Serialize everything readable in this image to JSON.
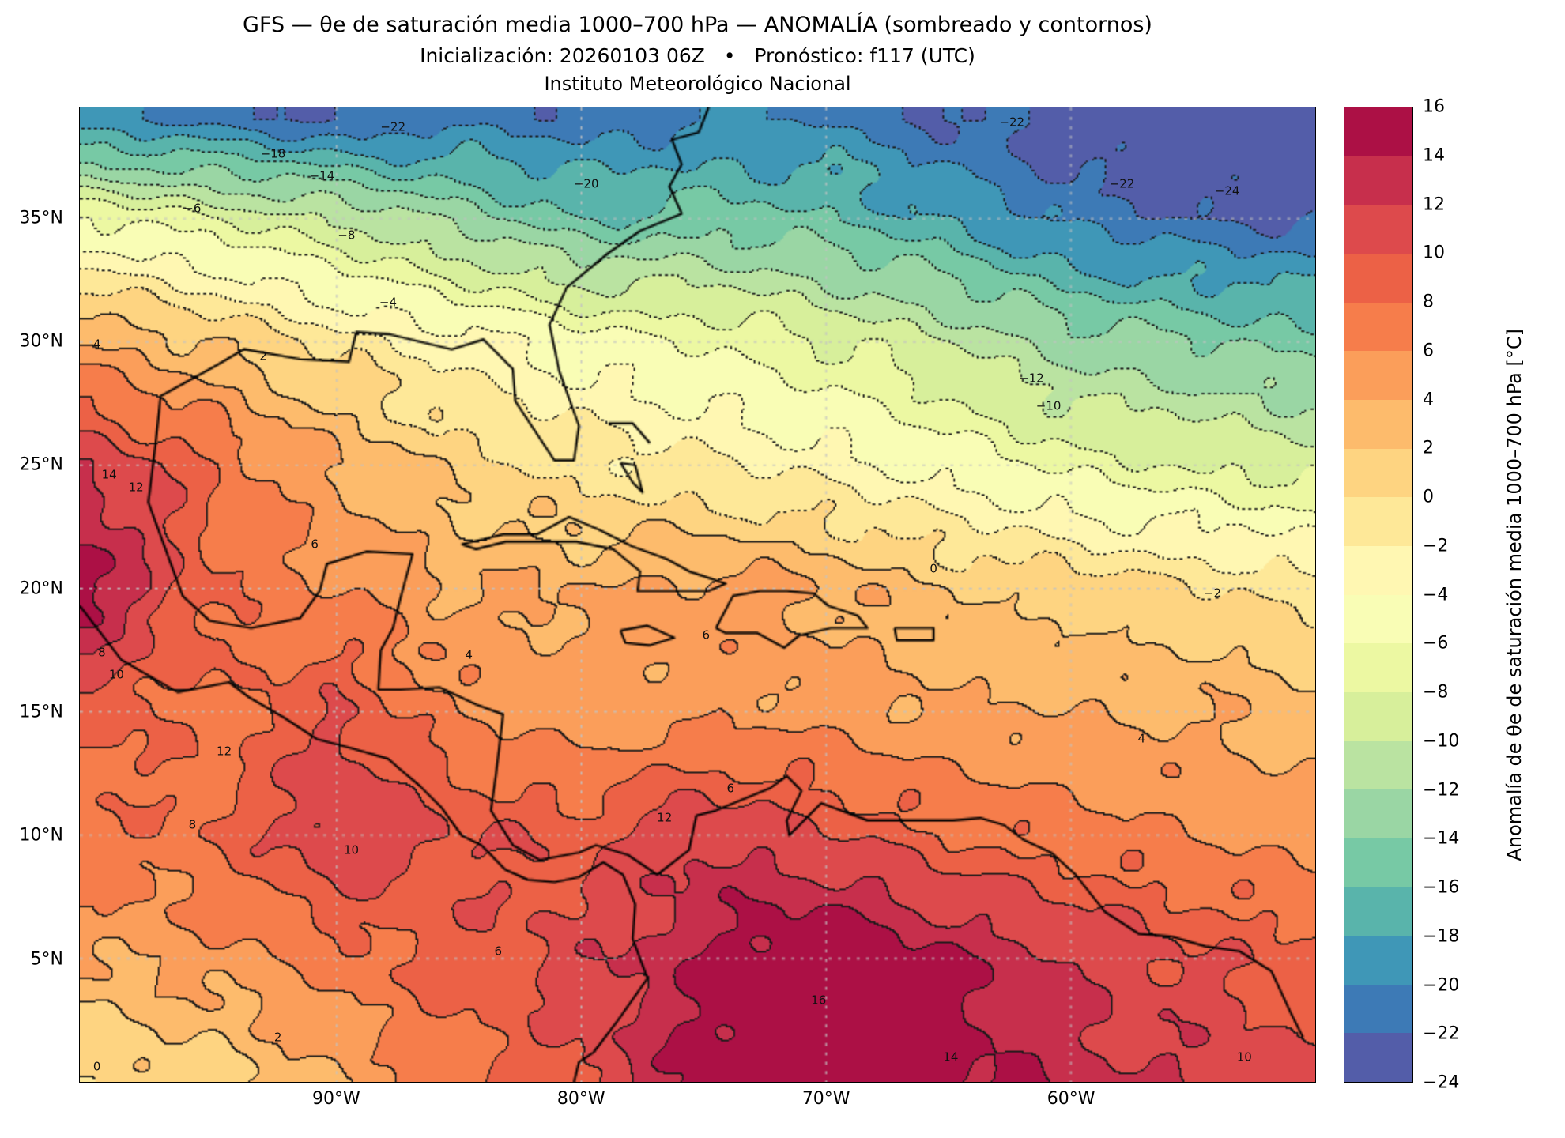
{
  "titles": {
    "line1": "GFS — θe de saturación media 1000–700 hPa — ANOMALÍA (sombreado y contornos)",
    "line2": "Inicialización: 20260103 06Z   •   Pronóstico: f117 (UTC)",
    "line3": "Instituto Meteorológico Nacional"
  },
  "axes": {
    "lat_ticks": [
      {
        "value": 35,
        "label": "35°N"
      },
      {
        "value": 30,
        "label": "30°N"
      },
      {
        "value": 25,
        "label": "25°N"
      },
      {
        "value": 20,
        "label": "20°N"
      },
      {
        "value": 15,
        "label": "15°N"
      },
      {
        "value": 10,
        "label": "10°N"
      },
      {
        "value": 5,
        "label": "5°N"
      }
    ],
    "lon_ticks": [
      {
        "value": -90,
        "label": "90°W"
      },
      {
        "value": -80,
        "label": "80°W"
      },
      {
        "value": -70,
        "label": "70°W"
      },
      {
        "value": -60,
        "label": "60°W"
      }
    ]
  },
  "colorbar": {
    "label": "Anomalía de θe de saturación media 1000–700 hPa [°C]",
    "tick_values": [
      16,
      14,
      12,
      10,
      8,
      6,
      4,
      2,
      0,
      -2,
      -4,
      -6,
      -8,
      -10,
      -12,
      -14,
      -16,
      -18,
      -20,
      -22,
      -24
    ],
    "levels_min": -24,
    "levels_max": 16,
    "level_step": 2,
    "spectral_anchors": [
      "#5e4fa2",
      "#3288bd",
      "#66c2a5",
      "#abdda4",
      "#e6f598",
      "#ffffbf",
      "#fee08b",
      "#fdae61",
      "#f46d43",
      "#d53e4f",
      "#9e0142"
    ]
  },
  "chart_data": {
    "type": "heatmap",
    "title": "GFS — θe de saturación media 1000–700 hPa — ANOMALÍA (sombreado y contornos)",
    "units": "°C",
    "levels": {
      "min": -24,
      "max": 16,
      "step": 2
    },
    "extent": {
      "lon_min": -100.5,
      "lon_max": -50,
      "lat_min": 0,
      "lat_max": 39.5
    },
    "grid": {
      "lons": [
        -100,
        -95,
        -90,
        -85,
        -80,
        -75,
        -70,
        -65,
        -60,
        -55,
        -50
      ],
      "lats": [
        39,
        35,
        30,
        25,
        20,
        15,
        10,
        5,
        0
      ],
      "anomaly": [
        [
          -20,
          -21,
          -22,
          -21,
          -21,
          -20,
          -20,
          -22,
          -23,
          -25,
          -25
        ],
        [
          -6,
          -8,
          -10,
          -13,
          -16,
          -15,
          -16,
          -18,
          -21,
          -22,
          -22
        ],
        [
          4,
          2,
          -1,
          -3,
          -5,
          -6,
          -8,
          -10,
          -13,
          -14,
          -15
        ],
        [
          12,
          8,
          4,
          1,
          -1,
          -2,
          -3,
          -5,
          -7,
          -8,
          -9
        ],
        [
          15,
          8,
          6,
          4,
          4,
          5,
          4,
          2,
          1,
          0,
          -1
        ],
        [
          9,
          7,
          10,
          6,
          5,
          5,
          5,
          4,
          4,
          4,
          3
        ],
        [
          7,
          8,
          12,
          10,
          9,
          12,
          10,
          8,
          7,
          6,
          5
        ],
        [
          4,
          5,
          7,
          9,
          11,
          14,
          17,
          14,
          12,
          10,
          9
        ],
        [
          0,
          1,
          4,
          7,
          10,
          15,
          17,
          15,
          13,
          12,
          10
        ]
      ]
    },
    "contour_labels": [
      {
        "lon": -92.6,
        "lat": 37.6,
        "text": "-18"
      },
      {
        "lon": -87.7,
        "lat": 38.7,
        "text": "-22"
      },
      {
        "lon": -90.6,
        "lat": 36.7,
        "text": "-14"
      },
      {
        "lon": -95.9,
        "lat": 35.4,
        "text": "-6"
      },
      {
        "lon": -89.6,
        "lat": 34.3,
        "text": "-8"
      },
      {
        "lon": -79.8,
        "lat": 36.4,
        "text": "-20"
      },
      {
        "lon": -62.4,
        "lat": 38.9,
        "text": "-22"
      },
      {
        "lon": -57.9,
        "lat": 36.4,
        "text": "-22"
      },
      {
        "lon": -53.6,
        "lat": 36.1,
        "text": "-24"
      },
      {
        "lon": -87.9,
        "lat": 31.6,
        "text": "-4"
      },
      {
        "lon": -61.6,
        "lat": 28.5,
        "text": "-12"
      },
      {
        "lon": -60.9,
        "lat": 27.4,
        "text": "-10"
      },
      {
        "lon": -99.8,
        "lat": 29.9,
        "text": "4"
      },
      {
        "lon": -93.0,
        "lat": 29.4,
        "text": "2"
      },
      {
        "lon": -90.9,
        "lat": 21.8,
        "text": "6"
      },
      {
        "lon": -99.3,
        "lat": 24.6,
        "text": "14"
      },
      {
        "lon": -98.2,
        "lat": 24.1,
        "text": "12"
      },
      {
        "lon": -65.6,
        "lat": 20.8,
        "text": "0"
      },
      {
        "lon": -54.2,
        "lat": 19.8,
        "text": "-2"
      },
      {
        "lon": -74.9,
        "lat": 18.1,
        "text": "6"
      },
      {
        "lon": -84.6,
        "lat": 17.3,
        "text": "4"
      },
      {
        "lon": -99.6,
        "lat": 17.4,
        "text": "8"
      },
      {
        "lon": -99.0,
        "lat": 16.5,
        "text": "10"
      },
      {
        "lon": -94.6,
        "lat": 13.4,
        "text": "12"
      },
      {
        "lon": -95.9,
        "lat": 10.4,
        "text": "8"
      },
      {
        "lon": -89.4,
        "lat": 9.4,
        "text": "10"
      },
      {
        "lon": -76.6,
        "lat": 10.7,
        "text": "12"
      },
      {
        "lon": -73.9,
        "lat": 11.9,
        "text": "6"
      },
      {
        "lon": -70.3,
        "lat": 3.3,
        "text": "16"
      },
      {
        "lon": -64.9,
        "lat": 1.0,
        "text": "14"
      },
      {
        "lon": -57.1,
        "lat": 13.9,
        "text": "4"
      },
      {
        "lon": -92.4,
        "lat": 1.8,
        "text": "2"
      },
      {
        "lon": -99.8,
        "lat": 0.6,
        "text": "0"
      },
      {
        "lon": -83.4,
        "lat": 5.3,
        "text": "6"
      },
      {
        "lon": -52.9,
        "lat": 1.0,
        "text": "10"
      }
    ],
    "coastlines": [
      [
        [
          -97.4,
          25.9
        ],
        [
          -97.2,
          27.8
        ],
        [
          -95.0,
          29.0
        ],
        [
          -93.8,
          29.7
        ],
        [
          -91.5,
          29.3
        ],
        [
          -89.5,
          29.2
        ],
        [
          -89.2,
          30.4
        ],
        [
          -87.8,
          30.3
        ],
        [
          -85.3,
          29.7
        ],
        [
          -84.0,
          30.1
        ],
        [
          -82.8,
          28.9
        ],
        [
          -82.7,
          27.6
        ],
        [
          -81.9,
          26.4
        ],
        [
          -81.1,
          25.2
        ],
        [
          -80.3,
          25.2
        ],
        [
          -80.1,
          26.6
        ],
        [
          -80.9,
          28.8
        ],
        [
          -81.3,
          30.7
        ],
        [
          -80.6,
          32.2
        ],
        [
          -78.9,
          33.6
        ],
        [
          -77.6,
          34.5
        ],
        [
          -75.9,
          35.2
        ],
        [
          -76.4,
          36.3
        ],
        [
          -75.9,
          37.2
        ],
        [
          -76.3,
          38.2
        ],
        [
          -75.2,
          38.5
        ],
        [
          -74.8,
          39.5
        ]
      ],
      [
        [
          -97.4,
          25.9
        ],
        [
          -97.7,
          23.5
        ],
        [
          -96.3,
          19.7
        ],
        [
          -95.2,
          18.7
        ],
        [
          -93.5,
          18.4
        ],
        [
          -91.5,
          18.8
        ],
        [
          -90.7,
          19.9
        ],
        [
          -90.4,
          21.0
        ],
        [
          -88.8,
          21.5
        ],
        [
          -86.9,
          21.4
        ],
        [
          -87.4,
          19.6
        ],
        [
          -87.7,
          18.4
        ],
        [
          -88.2,
          17.5
        ],
        [
          -88.3,
          15.9
        ],
        [
          -87.4,
          15.9
        ],
        [
          -85.8,
          16.0
        ],
        [
          -84.3,
          15.3
        ],
        [
          -83.2,
          14.9
        ],
        [
          -83.5,
          12.4
        ],
        [
          -83.7,
          11.0
        ],
        [
          -82.8,
          9.6
        ],
        [
          -81.7,
          9.0
        ],
        [
          -80.1,
          9.3
        ],
        [
          -79.4,
          9.6
        ],
        [
          -78.1,
          9.2
        ],
        [
          -77.2,
          8.6
        ],
        [
          -76.9,
          8.4
        ],
        [
          -75.6,
          9.4
        ],
        [
          -75.3,
          10.8
        ],
        [
          -74.5,
          11.0
        ],
        [
          -72.3,
          11.9
        ],
        [
          -71.6,
          12.4
        ],
        [
          -71.0,
          11.8
        ],
        [
          -71.6,
          10.6
        ],
        [
          -71.5,
          10.0
        ],
        [
          -70.2,
          11.3
        ],
        [
          -68.3,
          10.6
        ],
        [
          -66.1,
          10.6
        ],
        [
          -64.8,
          10.6
        ],
        [
          -63.7,
          10.7
        ],
        [
          -62.7,
          10.4
        ],
        [
          -61.9,
          9.8
        ],
        [
          -60.8,
          9.3
        ],
        [
          -59.8,
          8.4
        ],
        [
          -58.6,
          6.9
        ],
        [
          -57.2,
          6.0
        ],
        [
          -55.9,
          5.9
        ],
        [
          -54.5,
          5.5
        ],
        [
          -53.1,
          5.3
        ],
        [
          -51.8,
          4.5
        ],
        [
          -51.0,
          2.8
        ],
        [
          -50.5,
          1.8
        ]
      ],
      [
        [
          -100.5,
          19.3
        ],
        [
          -98.8,
          17.1
        ],
        [
          -96.5,
          15.8
        ],
        [
          -94.4,
          16.2
        ],
        [
          -93.6,
          15.6
        ],
        [
          -92.2,
          14.8
        ],
        [
          -90.8,
          13.9
        ],
        [
          -89.3,
          13.5
        ],
        [
          -87.9,
          13.1
        ],
        [
          -87.2,
          12.5
        ],
        [
          -86.6,
          12.0
        ],
        [
          -85.7,
          11.1
        ],
        [
          -84.9,
          10.0
        ],
        [
          -84.1,
          9.6
        ],
        [
          -83.1,
          8.6
        ],
        [
          -82.2,
          8.2
        ],
        [
          -81.1,
          8.1
        ],
        [
          -80.1,
          8.3
        ],
        [
          -79.1,
          8.9
        ],
        [
          -78.3,
          8.4
        ],
        [
          -77.8,
          7.2
        ],
        [
          -77.9,
          5.8
        ],
        [
          -77.3,
          4.2
        ],
        [
          -78.5,
          2.5
        ],
        [
          -79.5,
          1.2
        ],
        [
          -80.1,
          0.8
        ],
        [
          -80.3,
          0.0
        ]
      ],
      [
        [
          -84.9,
          21.8
        ],
        [
          -84.0,
          22.0
        ],
        [
          -83.2,
          22.2
        ],
        [
          -81.8,
          22.2
        ],
        [
          -80.5,
          22.9
        ],
        [
          -79.3,
          22.4
        ],
        [
          -77.9,
          21.7
        ],
        [
          -76.5,
          21.2
        ],
        [
          -75.6,
          20.7
        ],
        [
          -74.1,
          20.2
        ],
        [
          -74.8,
          19.9
        ],
        [
          -76.3,
          19.9
        ],
        [
          -77.7,
          19.9
        ],
        [
          -77.6,
          20.7
        ],
        [
          -78.7,
          21.6
        ],
        [
          -80.2,
          21.9
        ],
        [
          -81.8,
          21.9
        ],
        [
          -83.1,
          21.9
        ],
        [
          -84.3,
          21.6
        ],
        [
          -84.9,
          21.8
        ]
      ],
      [
        [
          -74.5,
          18.4
        ],
        [
          -73.8,
          19.7
        ],
        [
          -72.7,
          19.9
        ],
        [
          -71.6,
          19.9
        ],
        [
          -70.5,
          19.8
        ],
        [
          -69.9,
          19.3
        ],
        [
          -68.7,
          18.9
        ],
        [
          -68.3,
          18.4
        ],
        [
          -69.8,
          18.4
        ],
        [
          -71.1,
          18.1
        ],
        [
          -71.7,
          17.6
        ],
        [
          -72.8,
          18.2
        ],
        [
          -74.1,
          18.2
        ],
        [
          -74.5,
          18.4
        ]
      ],
      [
        [
          -78.4,
          18.3
        ],
        [
          -77.3,
          18.5
        ],
        [
          -76.2,
          18.0
        ],
        [
          -77.2,
          17.7
        ],
        [
          -78.2,
          17.8
        ],
        [
          -78.4,
          18.3
        ]
      ],
      [
        [
          -67.2,
          18.4
        ],
        [
          -65.6,
          18.4
        ],
        [
          -65.6,
          17.9
        ],
        [
          -67.1,
          17.9
        ],
        [
          -67.2,
          18.4
        ]
      ],
      [
        [
          -78.9,
          26.7
        ],
        [
          -77.9,
          26.7
        ],
        [
          -77.2,
          25.9
        ]
      ],
      [
        [
          -78.4,
          25.1
        ],
        [
          -77.9,
          24.3
        ],
        [
          -77.5,
          23.9
        ],
        [
          -77.8,
          25.0
        ],
        [
          -78.4,
          25.1
        ]
      ]
    ]
  }
}
